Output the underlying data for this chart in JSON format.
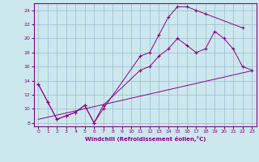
{
  "xlabel": "Windchill (Refroidissement éolien,°C)",
  "bg_color": "#cce8ee",
  "line_color": "#880088",
  "grid_color": "#99bbcc",
  "xlim": [
    -0.5,
    23.5
  ],
  "ylim": [
    7.5,
    25.0
  ],
  "xticks": [
    0,
    1,
    2,
    3,
    4,
    5,
    6,
    7,
    8,
    9,
    10,
    11,
    12,
    13,
    14,
    15,
    16,
    17,
    18,
    19,
    20,
    21,
    22,
    23
  ],
  "yticks": [
    8,
    10,
    12,
    14,
    16,
    18,
    20,
    22,
    24
  ],
  "line1_x": [
    0,
    1,
    2,
    3,
    4,
    5,
    6,
    7,
    11,
    12,
    13,
    14,
    15,
    16,
    17,
    18,
    22
  ],
  "line1_y": [
    13.5,
    11.0,
    8.5,
    9.0,
    9.5,
    10.5,
    8.0,
    10.0,
    17.5,
    18.0,
    20.5,
    23.0,
    24.5,
    24.5,
    24.0,
    23.5,
    21.5
  ],
  "line2_x": [
    0,
    1,
    2,
    3,
    4,
    5,
    6,
    7,
    11,
    12,
    13,
    14,
    15,
    16,
    17,
    18,
    19,
    20,
    21,
    22,
    23
  ],
  "line2_y": [
    13.5,
    11.0,
    8.5,
    9.0,
    9.5,
    10.5,
    8.0,
    10.5,
    15.5,
    16.0,
    17.5,
    18.5,
    20.0,
    19.0,
    18.0,
    18.5,
    21.0,
    20.0,
    18.5,
    16.0,
    15.5
  ],
  "line3_x": [
    0,
    1,
    2,
    3,
    4,
    5,
    6,
    7,
    8,
    9,
    10,
    11,
    12,
    13,
    14,
    15,
    16,
    17,
    18,
    19,
    20,
    21,
    22,
    23
  ],
  "line3_y": [
    8.5,
    8.8,
    9.1,
    9.4,
    9.7,
    10.0,
    10.3,
    10.6,
    10.9,
    11.2,
    11.5,
    11.8,
    12.1,
    12.4,
    12.7,
    13.0,
    13.3,
    13.6,
    13.9,
    14.2,
    14.5,
    14.8,
    15.1,
    15.4
  ],
  "marker": "+"
}
